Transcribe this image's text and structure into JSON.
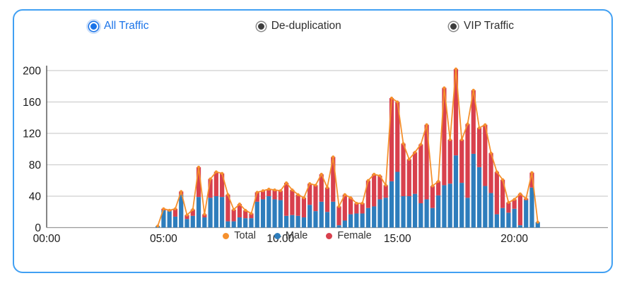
{
  "tabs": {
    "items": [
      {
        "label": "All Traffic",
        "selected": true
      },
      {
        "label": "De-duplication",
        "selected": false
      },
      {
        "label": "VIP Traffic",
        "selected": false
      }
    ]
  },
  "legend": {
    "items": [
      {
        "label": "Total",
        "color": "#f5902d"
      },
      {
        "label": "Male",
        "color": "#2e7dbc"
      },
      {
        "label": "Female",
        "color": "#d8404d"
      }
    ]
  },
  "colors": {
    "accent": "#1a73e8",
    "card_border": "#41a0f3",
    "male_bar": "#2e7dbc",
    "female_bar": "#d8404d",
    "total_line": "#f5902d",
    "grid": "#cfcfcf",
    "axis_left": "#444444",
    "axis_bottom": "#999999",
    "tick_text": "#1a1a1a"
  },
  "chart_data": {
    "type": "composed",
    "note": "stacked bars (Male bottom, Female top) with Total line overlay; ~15-min bins",
    "x": [
      "04:45",
      "05:00",
      "05:15",
      "05:30",
      "05:45",
      "06:00",
      "06:15",
      "06:30",
      "06:45",
      "07:00",
      "07:15",
      "07:30",
      "07:45",
      "08:00",
      "08:15",
      "08:30",
      "08:45",
      "09:00",
      "09:15",
      "09:30",
      "09:45",
      "10:00",
      "10:15",
      "10:30",
      "10:45",
      "11:00",
      "11:15",
      "11:30",
      "11:45",
      "12:00",
      "12:15",
      "12:30",
      "12:45",
      "13:00",
      "13:15",
      "13:30",
      "13:45",
      "14:00",
      "14:15",
      "14:30",
      "14:45",
      "15:00",
      "15:15",
      "15:30",
      "15:45",
      "16:00",
      "16:15",
      "16:30",
      "16:45",
      "17:00",
      "17:15",
      "17:30",
      "17:45",
      "18:00",
      "18:15",
      "18:30",
      "18:45",
      "19:00",
      "19:15",
      "19:30",
      "19:45",
      "20:00",
      "20:15",
      "20:30",
      "20:45",
      "21:00"
    ],
    "series": [
      {
        "name": "Male",
        "type": "bar",
        "stack": "traffic",
        "color": "#2e7dbc",
        "values": [
          2,
          22,
          21,
          14,
          42,
          11,
          15,
          39,
          13,
          38,
          40,
          39,
          8,
          8,
          13,
          12,
          12,
          33,
          36,
          40,
          36,
          35,
          15,
          16,
          15,
          13,
          29,
          21,
          33,
          20,
          33,
          3,
          9,
          17,
          18,
          18,
          25,
          27,
          36,
          38,
          59,
          71,
          40,
          40,
          43,
          31,
          36,
          25,
          41,
          54,
          56,
          92,
          57,
          38,
          94,
          77,
          53,
          44,
          17,
          25,
          19,
          24,
          3,
          35,
          51,
          7
        ]
      },
      {
        "name": "Female",
        "type": "bar",
        "stack": "traffic",
        "color": "#d8404d",
        "values": [
          0,
          2,
          1,
          10,
          4,
          5,
          8,
          38,
          4,
          24,
          31,
          30,
          34,
          15,
          17,
          10,
          6,
          12,
          11,
          9,
          12,
          12,
          42,
          32,
          27,
          25,
          27,
          33,
          35,
          31,
          57,
          24,
          33,
          21,
          13,
          13,
          35,
          41,
          30,
          16,
          106,
          89,
          67,
          47,
          53,
          75,
          95,
          28,
          18,
          124,
          56,
          110,
          55,
          94,
          81,
          50,
          78,
          51,
          54,
          36,
          13,
          12,
          40,
          2,
          19,
          0
        ]
      },
      {
        "name": "Total",
        "type": "line",
        "color": "#f5902d",
        "values": [
          2,
          24,
          22,
          24,
          46,
          16,
          23,
          77,
          17,
          62,
          71,
          69,
          42,
          23,
          30,
          22,
          18,
          45,
          47,
          49,
          48,
          47,
          57,
          48,
          42,
          38,
          56,
          54,
          68,
          51,
          90,
          27,
          42,
          38,
          31,
          31,
          60,
          68,
          66,
          54,
          165,
          160,
          107,
          87,
          96,
          106,
          131,
          53,
          59,
          178,
          112,
          202,
          112,
          132,
          175,
          127,
          131,
          95,
          71,
          61,
          32,
          36,
          43,
          37,
          70,
          7
        ]
      }
    ],
    "yticks": [
      0,
      40,
      80,
      120,
      160,
      200
    ],
    "xticks": [
      "00:00",
      "05:00",
      "10:00",
      "15:00",
      "20:00"
    ],
    "xtick_hours": [
      0,
      5,
      10,
      15,
      20
    ],
    "start_hour": 4.75,
    "step_hours": 0.25,
    "ylim": [
      0,
      220
    ],
    "xlim_hours": [
      0,
      24
    ],
    "grid": "horizontal",
    "legend_position": "bottom"
  }
}
